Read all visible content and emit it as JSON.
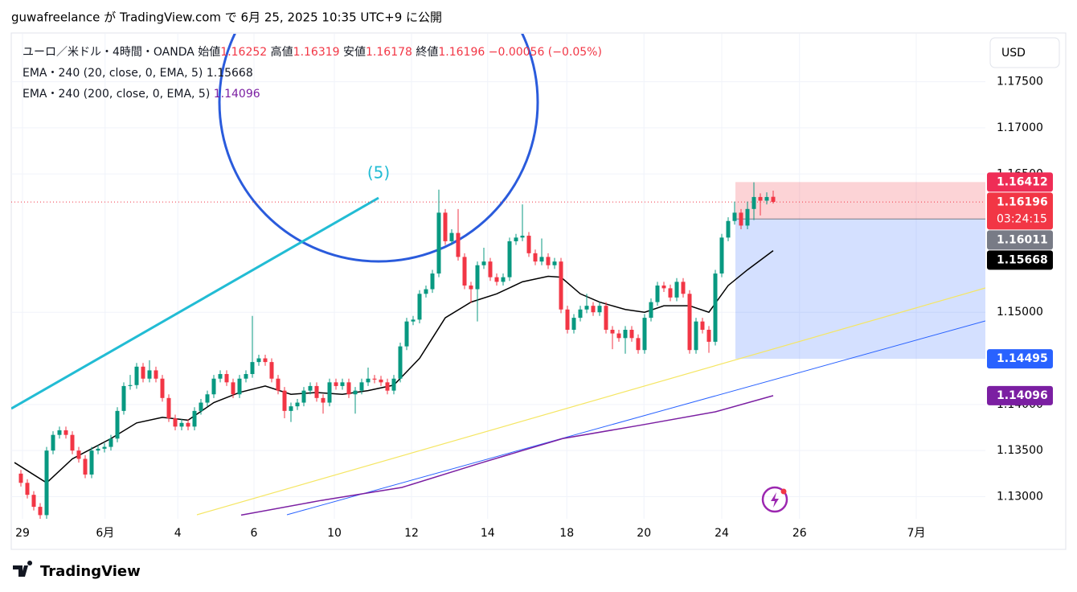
{
  "header": {
    "text": "guwafreelance が TradingView.com で 6月 25, 2025 10:35 UTC+9 に公開"
  },
  "chart_data": {
    "type": "candlestick",
    "symbol": "ユーロ／米ドル・4時間・OANDA",
    "ohlc_labels": [
      "始値",
      "高値",
      "安値",
      "終値"
    ],
    "change": "−0.00056 (−0.05%)",
    "colors": {
      "up": "#089981",
      "down": "#f23645"
    },
    "ohlc": [
      [
        1.1325,
        1.1329,
        1.1311,
        1.1315
      ],
      [
        1.1315,
        1.1319,
        1.1298,
        1.1302
      ],
      [
        1.1302,
        1.1306,
        1.1285,
        1.1289
      ],
      [
        1.1289,
        1.1293,
        1.1276,
        1.128
      ],
      [
        1.128,
        1.1354,
        1.1276,
        1.135
      ],
      [
        1.135,
        1.1371,
        1.1346,
        1.1367
      ],
      [
        1.1367,
        1.1376,
        1.1363,
        1.1372
      ],
      [
        1.1372,
        1.1376,
        1.1363,
        1.1367
      ],
      [
        1.1367,
        1.1371,
        1.1346,
        1.135
      ],
      [
        1.135,
        1.1354,
        1.1337,
        1.1341
      ],
      [
        1.1341,
        1.1345,
        1.132,
        1.1324
      ],
      [
        1.1324,
        1.1354,
        1.132,
        1.135
      ],
      [
        1.135,
        1.1356,
        1.1346,
        1.1352
      ],
      [
        1.1352,
        1.1358,
        1.1348,
        1.1354
      ],
      [
        1.1354,
        1.1367,
        1.135,
        1.1363
      ],
      [
        1.1363,
        1.1397,
        1.1359,
        1.1393
      ],
      [
        1.1393,
        1.1424,
        1.1389,
        1.142
      ],
      [
        1.142,
        1.1432,
        1.1416,
        1.1421
      ],
      [
        1.1421,
        1.1445,
        1.1417,
        1.1441
      ],
      [
        1.1441,
        1.1445,
        1.1424,
        1.1428
      ],
      [
        1.1428,
        1.1448,
        1.1424,
        1.1437
      ],
      [
        1.1437,
        1.1441,
        1.1424,
        1.1428
      ],
      [
        1.1428,
        1.1432,
        1.1403,
        1.1407
      ],
      [
        1.1407,
        1.1411,
        1.1381,
        1.1385
      ],
      [
        1.1385,
        1.1389,
        1.1372,
        1.1376
      ],
      [
        1.1376,
        1.1384,
        1.1372,
        1.138
      ],
      [
        1.138,
        1.1384,
        1.1372,
        1.1376
      ],
      [
        1.1376,
        1.1397,
        1.1372,
        1.1393
      ],
      [
        1.1393,
        1.1406,
        1.1389,
        1.1402
      ],
      [
        1.1402,
        1.1415,
        1.1398,
        1.1411
      ],
      [
        1.1411,
        1.1432,
        1.1407,
        1.1428
      ],
      [
        1.1428,
        1.1437,
        1.1424,
        1.1433
      ],
      [
        1.1433,
        1.1437,
        1.142,
        1.1424
      ],
      [
        1.1424,
        1.1428,
        1.1407,
        1.1411
      ],
      [
        1.1411,
        1.1432,
        1.1407,
        1.1428
      ],
      [
        1.1428,
        1.1437,
        1.1424,
        1.1433
      ],
      [
        1.1433,
        1.1496,
        1.1429,
        1.1446
      ],
      [
        1.1446,
        1.1454,
        1.1442,
        1.145
      ],
      [
        1.145,
        1.1454,
        1.1442,
        1.1446
      ],
      [
        1.1446,
        1.145,
        1.1424,
        1.1428
      ],
      [
        1.1428,
        1.1432,
        1.1411,
        1.1415
      ],
      [
        1.1415,
        1.1419,
        1.1385,
        1.1393
      ],
      [
        1.1393,
        1.1402,
        1.1381,
        1.1398
      ],
      [
        1.1398,
        1.1406,
        1.1394,
        1.1402
      ],
      [
        1.1402,
        1.1419,
        1.1398,
        1.1415
      ],
      [
        1.1415,
        1.1424,
        1.1411,
        1.142
      ],
      [
        1.142,
        1.1424,
        1.1403,
        1.1407
      ],
      [
        1.1407,
        1.1411,
        1.139,
        1.1402
      ],
      [
        1.1402,
        1.1428,
        1.1398,
        1.1424
      ],
      [
        1.1424,
        1.1428,
        1.1416,
        1.142
      ],
      [
        1.142,
        1.1428,
        1.1416,
        1.1424
      ],
      [
        1.1424,
        1.1428,
        1.1407,
        1.1411
      ],
      [
        1.1411,
        1.1419,
        1.139,
        1.1415
      ],
      [
        1.1415,
        1.1428,
        1.1411,
        1.1424
      ],
      [
        1.1424,
        1.144,
        1.142,
        1.1428
      ],
      [
        1.1428,
        1.1432,
        1.1423,
        1.1427
      ],
      [
        1.1427,
        1.1431,
        1.142,
        1.1424
      ],
      [
        1.1424,
        1.1428,
        1.1411,
        1.1415
      ],
      [
        1.1415,
        1.1432,
        1.1411,
        1.1428
      ],
      [
        1.1428,
        1.1467,
        1.1424,
        1.1463
      ],
      [
        1.1463,
        1.1494,
        1.1459,
        1.149
      ],
      [
        1.149,
        1.1496,
        1.1486,
        1.1492
      ],
      [
        1.1492,
        1.1524,
        1.1488,
        1.152
      ],
      [
        1.152,
        1.1529,
        1.1516,
        1.1525
      ],
      [
        1.1525,
        1.1546,
        1.1521,
        1.1542
      ],
      [
        1.1542,
        1.1633,
        1.1538,
        1.1608
      ],
      [
        1.1608,
        1.1612,
        1.1573,
        1.1577
      ],
      [
        1.1577,
        1.159,
        1.1573,
        1.1586
      ],
      [
        1.1586,
        1.1612,
        1.1556,
        1.156
      ],
      [
        1.156,
        1.1564,
        1.1525,
        1.1529
      ],
      [
        1.1529,
        1.1533,
        1.151,
        1.1525
      ],
      [
        1.1525,
        1.1555,
        1.149,
        1.1551
      ],
      [
        1.1551,
        1.157,
        1.1547,
        1.1555
      ],
      [
        1.1555,
        1.1559,
        1.1534,
        1.1538
      ],
      [
        1.1538,
        1.1542,
        1.1529,
        1.1533
      ],
      [
        1.1533,
        1.1542,
        1.1529,
        1.1538
      ],
      [
        1.1538,
        1.1581,
        1.1534,
        1.1577
      ],
      [
        1.1577,
        1.1585,
        1.1573,
        1.1581
      ],
      [
        1.1581,
        1.1617,
        1.1577,
        1.1583
      ],
      [
        1.1583,
        1.1587,
        1.156,
        1.1564
      ],
      [
        1.1564,
        1.1568,
        1.1551,
        1.1555
      ],
      [
        1.1555,
        1.158,
        1.1551,
        1.156
      ],
      [
        1.156,
        1.1564,
        1.1547,
        1.1551
      ],
      [
        1.1551,
        1.1559,
        1.1547,
        1.1555
      ],
      [
        1.1555,
        1.1559,
        1.1499,
        1.1503
      ],
      [
        1.1503,
        1.1507,
        1.1477,
        1.1481
      ],
      [
        1.1481,
        1.1498,
        1.1477,
        1.1494
      ],
      [
        1.1494,
        1.1507,
        1.149,
        1.1503
      ],
      [
        1.1503,
        1.152,
        1.1499,
        1.1507
      ],
      [
        1.1507,
        1.1511,
        1.1496,
        1.15
      ],
      [
        1.15,
        1.1511,
        1.1496,
        1.1507
      ],
      [
        1.1507,
        1.1511,
        1.1477,
        1.1481
      ],
      [
        1.1481,
        1.1485,
        1.146,
        1.1477
      ],
      [
        1.1477,
        1.1481,
        1.1468,
        1.1472
      ],
      [
        1.1472,
        1.1485,
        1.1455,
        1.1481
      ],
      [
        1.1481,
        1.1485,
        1.1468,
        1.1472
      ],
      [
        1.1472,
        1.1476,
        1.1455,
        1.1459
      ],
      [
        1.1459,
        1.1498,
        1.1455,
        1.1494
      ],
      [
        1.1494,
        1.1515,
        1.149,
        1.1511
      ],
      [
        1.1511,
        1.1533,
        1.1507,
        1.1529
      ],
      [
        1.1529,
        1.1533,
        1.1522,
        1.1526
      ],
      [
        1.1526,
        1.153,
        1.1512,
        1.1516
      ],
      [
        1.1516,
        1.1537,
        1.1512,
        1.1533
      ],
      [
        1.1533,
        1.1537,
        1.1516,
        1.152
      ],
      [
        1.152,
        1.1524,
        1.1455,
        1.1459
      ],
      [
        1.1459,
        1.1494,
        1.1455,
        1.149
      ],
      [
        1.149,
        1.1494,
        1.1477,
        1.1481
      ],
      [
        1.1481,
        1.1485,
        1.1456,
        1.1468
      ],
      [
        1.1468,
        1.1546,
        1.1464,
        1.1542
      ],
      [
        1.1542,
        1.1585,
        1.1538,
        1.1581
      ],
      [
        1.1581,
        1.1603,
        1.1577,
        1.1599
      ],
      [
        1.1599,
        1.162,
        1.1595,
        1.1608
      ],
      [
        1.1608,
        1.1612,
        1.159,
        1.1594
      ],
      [
        1.1594,
        1.162,
        1.159,
        1.1612
      ],
      [
        1.1612,
        1.1641,
        1.16,
        1.1625
      ],
      [
        1.1625,
        1.1629,
        1.1605,
        1.1621
      ],
      [
        1.1621,
        1.163,
        1.1617,
        1.1625
      ],
      [
        1.16252,
        1.16319,
        1.16178,
        1.16196
      ]
    ],
    "indicators": [
      {
        "name": "EMA・240 (20, close, 0, EMA, 5)",
        "color": "#000000",
        "x": [
          -1,
          4,
          8,
          14,
          18,
          22,
          26,
          30,
          34,
          38,
          42,
          46,
          50,
          54,
          58,
          62,
          64,
          66,
          70,
          74,
          78,
          82,
          84,
          87,
          90,
          94,
          97,
          100,
          104,
          107,
          110,
          113,
          117
        ],
        "values": [
          1.1337,
          1.1315,
          1.1341,
          1.1363,
          1.138,
          1.1386,
          1.1383,
          1.1402,
          1.1413,
          1.142,
          1.1411,
          1.1413,
          1.1411,
          1.1415,
          1.1421,
          1.145,
          1.1472,
          1.1494,
          1.1511,
          1.152,
          1.1533,
          1.1539,
          1.1538,
          1.152,
          1.1511,
          1.1503,
          1.15,
          1.1507,
          1.1507,
          1.15,
          1.1529,
          1.1546,
          1.15668
        ]
      },
      {
        "name": "EMA・240 (200, close, 0, EMA, 5)",
        "color": "#7b1fa2",
        "x": [
          34.25,
          46.75,
          59.25,
          71.75,
          84.25,
          96.75,
          108,
          117
        ],
        "values": [
          1.128,
          1.1296,
          1.131,
          1.1337,
          1.1363,
          1.1378,
          1.1392,
          1.14096
        ]
      }
    ],
    "position": {
      "stop": 1.16412,
      "entry": 1.16011,
      "target": 1.14495
    },
    "countdown": "03:24:15",
    "annotation": "(5)",
    "currency": "USD",
    "xlim": [
      -1.5,
      150
    ],
    "ylim": [
      1.1276,
      1.1802
    ],
    "yticks": [
      {
        "value": 1.175,
        "label": "1.17500"
      },
      {
        "value": 1.17,
        "label": "1.17000"
      },
      {
        "value": 1.165,
        "label": "1.16500"
      },
      {
        "value": 1.15,
        "label": "1.15000"
      },
      {
        "value": 1.14,
        "label": "1.14000"
      },
      {
        "value": 1.135,
        "label": "1.13500"
      },
      {
        "value": 1.13,
        "label": "1.13000"
      }
    ],
    "xticks": [
      {
        "value": 0.25,
        "label": "29"
      },
      {
        "value": 13.1,
        "label": "6月"
      },
      {
        "value": 24.4,
        "label": "4"
      },
      {
        "value": 36.25,
        "label": "6"
      },
      {
        "value": 48.75,
        "label": "10"
      },
      {
        "value": 60.75,
        "label": "12"
      },
      {
        "value": 72.6,
        "label": "14"
      },
      {
        "value": 84.9,
        "label": "18"
      },
      {
        "value": 96.9,
        "label": "20"
      },
      {
        "value": 109,
        "label": "24"
      },
      {
        "value": 121.1,
        "label": "26"
      },
      {
        "value": 139.25,
        "label": "7月"
      }
    ]
  },
  "footer": {
    "brand": "TradingView"
  }
}
